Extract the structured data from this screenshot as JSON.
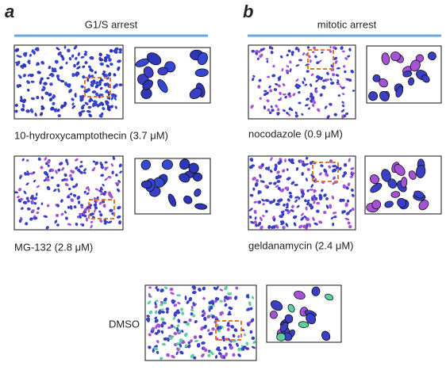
{
  "panels": [
    {
      "letter": "a",
      "heading": "G1/S arrest",
      "images": [
        {
          "label": "10-hydroxycamptothecin (3.7 μM)"
        },
        {
          "label": "MG-132  (2.8 μM)"
        }
      ]
    },
    {
      "letter": "b",
      "heading": "mitotic arrest",
      "images": [
        {
          "label": "nocodazole (0.9 μM)"
        },
        {
          "label": "geldanamycin (2.4 μM)"
        }
      ]
    }
  ],
  "control": {
    "label": "DMSO"
  }
}
